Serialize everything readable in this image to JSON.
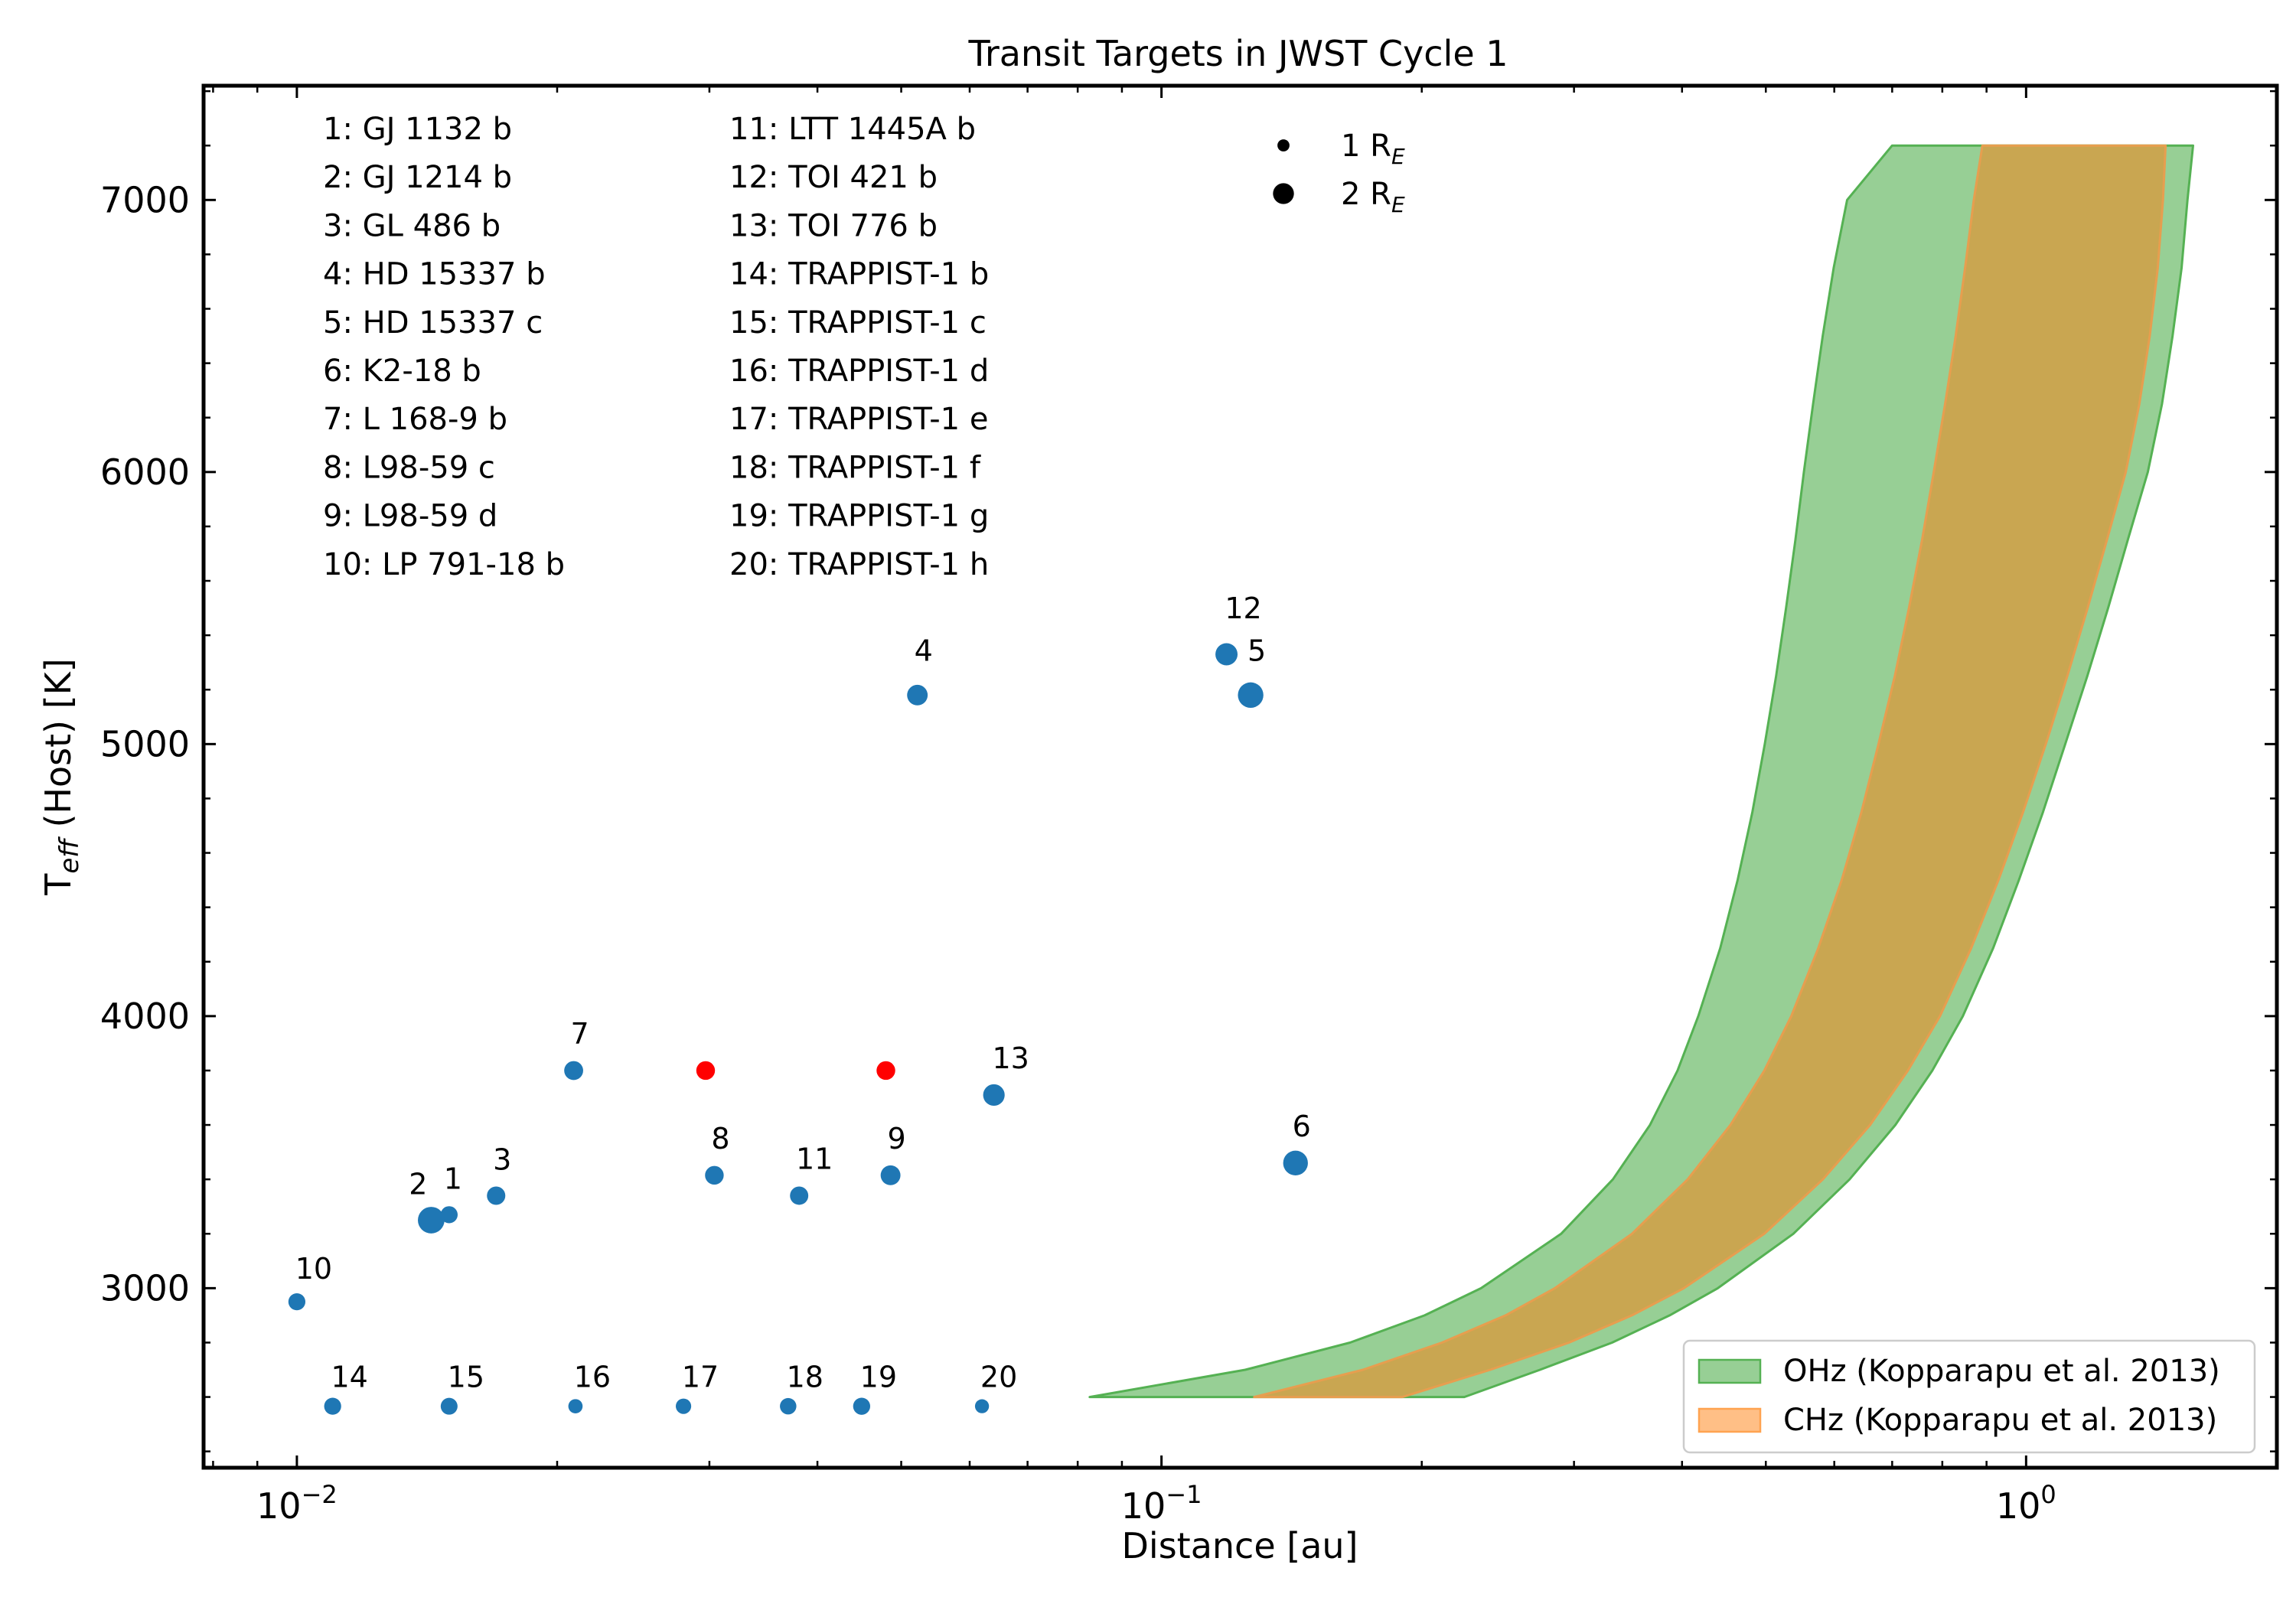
{
  "chart_data": {
    "type": "scatter",
    "title": "Transit Targets in JWST Cycle 1",
    "xlabel": "Distance [au]",
    "ylabel": {
      "base": "T",
      "sub": "eff",
      "rest": " (Host) [K]"
    },
    "xscale": "log",
    "xlim": [
      0.0078,
      1.95
    ],
    "ylim": [
      2340,
      7420
    ],
    "xticks": [
      {
        "value": 0.01,
        "base": "10",
        "exp": "−2"
      },
      {
        "value": 0.1,
        "base": "10",
        "exp": "−1"
      },
      {
        "value": 1,
        "base": "10",
        "exp": "0"
      }
    ],
    "yticks": [
      3000,
      4000,
      5000,
      6000,
      7000
    ],
    "planet_names": [
      "1: GJ 1132 b",
      "2: GJ 1214 b",
      "3: GL 486 b",
      "4: HD 15337 b",
      "5: HD 15337 c",
      "6: K2-18 b",
      "7: L 168-9 b",
      "8: L98-59 c",
      "9: L98-59 d",
      "10: LP 791-18 b",
      "11: LTT 1445A b",
      "12: TOI 421 b",
      "13: TOI 776 b",
      "14: TRAPPIST-1 b",
      "15: TRAPPIST-1 c",
      "16: TRAPPIST-1 d",
      "17: TRAPPIST-1 e",
      "18: TRAPPIST-1 f",
      "19: TRAPPIST-1 g",
      "20: TRAPPIST-1 h"
    ],
    "points": [
      {
        "label": "1",
        "x": 0.015,
        "y": 3270,
        "radius_re": 1.13
      },
      {
        "label": "2",
        "x": 0.0143,
        "y": 3250,
        "radius_re": 2.74
      },
      {
        "label": "3",
        "x": 0.017,
        "y": 3340,
        "radius_re": 1.31
      },
      {
        "label": "4",
        "x": 0.0522,
        "y": 5180,
        "radius_re": 1.64
      },
      {
        "label": "5",
        "x": 0.1268,
        "y": 5180,
        "radius_re": 2.52
      },
      {
        "label": "6",
        "x": 0.1429,
        "y": 3460,
        "radius_re": 2.37
      },
      {
        "label": "7",
        "x": 0.0209,
        "y": 3800,
        "radius_re": 1.39
      },
      {
        "label": "8",
        "x": 0.0304,
        "y": 3415,
        "radius_re": 1.35
      },
      {
        "label": "9",
        "x": 0.0486,
        "y": 3415,
        "radius_re": 1.52
      },
      {
        "label": "10",
        "x": 0.01,
        "y": 2950,
        "radius_re": 1.12
      },
      {
        "label": "11",
        "x": 0.0381,
        "y": 3340,
        "radius_re": 1.3
      },
      {
        "label": "12",
        "x": 0.1189,
        "y": 5330,
        "radius_re": 1.9
      },
      {
        "label": "13",
        "x": 0.064,
        "y": 3710,
        "radius_re": 1.8
      },
      {
        "label": "14",
        "x": 0.011,
        "y": 2566,
        "radius_re": 1.12
      },
      {
        "label": "15",
        "x": 0.015,
        "y": 2566,
        "radius_re": 1.1
      },
      {
        "label": "16",
        "x": 0.021,
        "y": 2566,
        "radius_re": 0.79
      },
      {
        "label": "17",
        "x": 0.028,
        "y": 2566,
        "radius_re": 0.92
      },
      {
        "label": "18",
        "x": 0.037,
        "y": 2566,
        "radius_re": 1.05
      },
      {
        "label": "19",
        "x": 0.045,
        "y": 2566,
        "radius_re": 1.13
      },
      {
        "label": "20",
        "x": 0.062,
        "y": 2566,
        "radius_re": 0.76
      }
    ],
    "extra_points": [
      {
        "x": 0.0297,
        "y": 3800,
        "radius_re": 1.35
      },
      {
        "x": 0.048,
        "y": 3800,
        "radius_re": 1.35
      }
    ],
    "size_legend": [
      {
        "value_re": 1,
        "base": "1 R",
        "sub": "E"
      },
      {
        "value_re": 2,
        "base": "2 R",
        "sub": "E"
      }
    ],
    "bands": [
      {
        "name": "OHz (Kopparapu et al. 2013)",
        "teff": [
          2600,
          2700,
          2800,
          2900,
          3000,
          3200,
          3400,
          3600,
          3800,
          4000,
          4250,
          4500,
          4750,
          5000,
          5250,
          5500,
          5750,
          6000,
          6250,
          6500,
          6750,
          7000,
          7200
        ],
        "inner": [
          0.0826,
          0.125,
          0.1652,
          0.2015,
          0.2342,
          0.2899,
          0.3327,
          0.3673,
          0.3952,
          0.4177,
          0.4428,
          0.4638,
          0.4824,
          0.4986,
          0.5139,
          0.5277,
          0.541,
          0.5533,
          0.567,
          0.5818,
          0.599,
          0.6209,
          0.7
        ],
        "outer": [
          0.224,
          0.274,
          0.332,
          0.387,
          0.44,
          0.538,
          0.625,
          0.706,
          0.779,
          0.845,
          0.916,
          0.981,
          1.046,
          1.11,
          1.177,
          1.244,
          1.311,
          1.383,
          1.436,
          1.477,
          1.513,
          1.537,
          1.56
        ]
      },
      {
        "name": "CHz (Kopparapu et al. 2013)",
        "teff": [
          2600,
          2700,
          2800,
          2900,
          3000,
          3200,
          3400,
          3600,
          3800,
          4000,
          4250,
          4500,
          4750,
          5000,
          5250,
          5500,
          5750,
          6000,
          6250,
          6500,
          6750,
          7000,
          7200
        ],
        "inner": [
          0.128,
          0.171,
          0.211,
          0.25,
          0.285,
          0.35,
          0.406,
          0.455,
          0.498,
          0.535,
          0.575,
          0.612,
          0.645,
          0.675,
          0.705,
          0.732,
          0.758,
          0.782,
          0.806,
          0.829,
          0.85,
          0.87,
          0.89
        ],
        "outer": [
          0.19,
          0.24,
          0.296,
          0.35,
          0.402,
          0.498,
          0.582,
          0.66,
          0.73,
          0.795,
          0.864,
          0.929,
          0.992,
          1.054,
          1.116,
          1.178,
          1.24,
          1.304,
          1.352,
          1.39,
          1.42,
          1.44,
          1.45
        ]
      }
    ],
    "legend_location": "lower-right",
    "colors": {
      "points": "#1f77b4",
      "highlight_points": "#ff0000",
      "ohz_fill": "#97cf95",
      "ohz_edge": "#55b153",
      "chz_fill": "#c9a651",
      "chz_edge": "#e79e4f",
      "chz_legend_fill": "#ffbf86",
      "chz_legend_edge": "#ffa350",
      "ohz_legend_fill": "#97cf95"
    }
  }
}
